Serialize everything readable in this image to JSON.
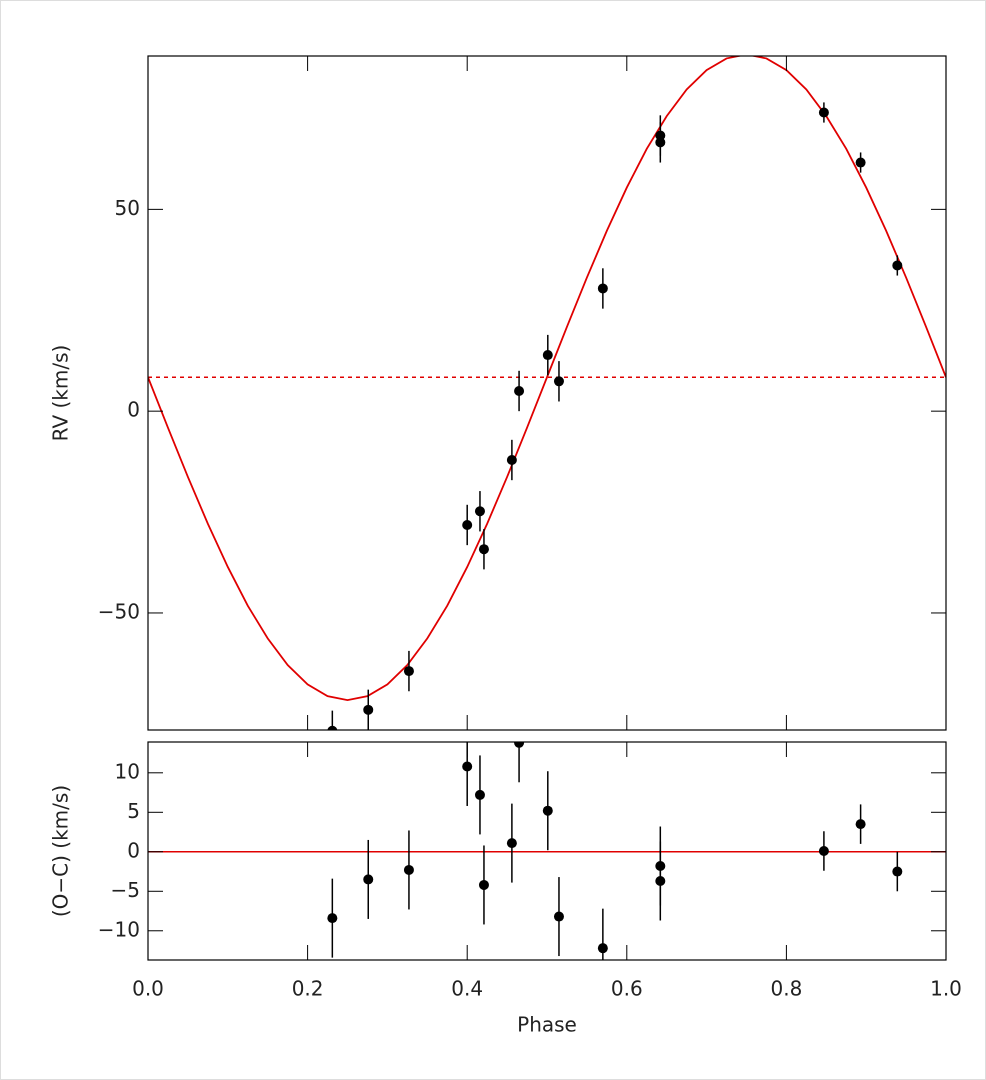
{
  "chart_data": [
    {
      "type": "scatter",
      "ylabel": "RV (km/s)",
      "color": "#000000",
      "x": [
        0.231,
        0.276,
        0.327,
        0.4,
        0.416,
        0.421,
        0.456,
        0.465,
        0.501,
        0.515,
        0.57,
        0.642,
        0.642,
        0.847,
        0.893,
        0.939
      ],
      "values": [
        -79.2,
        -74.0,
        -64.4,
        -28.2,
        -24.8,
        -34.2,
        -12.1,
        5.0,
        13.9,
        7.4,
        30.4,
        68.3,
        66.6,
        74.0,
        61.6,
        36.1
      ],
      "errors": [
        5,
        5,
        5,
        5,
        5,
        5,
        5,
        5,
        5,
        5,
        5,
        5,
        5,
        2.5,
        2.5,
        2.5
      ],
      "model": {
        "color": "#e00000",
        "x": [
          0,
          0.025,
          0.05,
          0.075,
          0.1,
          0.125,
          0.15,
          0.175,
          0.2,
          0.225,
          0.25,
          0.275,
          0.3,
          0.325,
          0.35,
          0.375,
          0.4,
          0.425,
          0.45,
          0.475,
          0.5,
          0.525,
          0.55,
          0.575,
          0.6,
          0.625,
          0.65,
          0.675,
          0.7,
          0.725,
          0.75,
          0.775,
          0.8,
          0.825,
          0.85,
          0.875,
          0.9,
          0.925,
          0.95,
          0.975,
          1
        ],
        "values": [
          8.4,
          -4.1,
          -16.3,
          -27.9,
          -38.6,
          -48.2,
          -56.3,
          -62.9,
          -67.7,
          -70.6,
          -71.6,
          -70.6,
          -67.7,
          -62.9,
          -56.3,
          -48.2,
          -38.6,
          -27.9,
          -16.3,
          -4.1,
          8.4,
          20.9,
          33.1,
          44.7,
          55.4,
          65.0,
          73.1,
          79.7,
          84.5,
          87.4,
          88.4,
          87.4,
          84.5,
          79.7,
          73.1,
          65.0,
          55.4,
          44.7,
          33.1,
          20.9,
          8.4
        ]
      },
      "hline": {
        "value": 8.4,
        "color": "#e00000",
        "style": "dashed"
      },
      "xlim": [
        0,
        1
      ],
      "xticks": [
        0,
        0.2,
        0.4,
        0.6,
        0.8,
        1
      ],
      "ylim": [
        -79,
        88
      ],
      "yticks": [
        {
          "value": -50,
          "label": "−50"
        },
        0,
        50
      ]
    },
    {
      "type": "scatter",
      "ylabel": "(O−C) (km/s)",
      "xlabel": "Phase",
      "color": "#000000",
      "x": [
        0.231,
        0.276,
        0.327,
        0.4,
        0.416,
        0.421,
        0.456,
        0.465,
        0.501,
        0.515,
        0.57,
        0.642,
        0.642,
        0.847,
        0.893,
        0.939
      ],
      "values": [
        -8.4,
        -3.5,
        -2.3,
        10.8,
        7.2,
        -4.2,
        1.1,
        13.8,
        5.2,
        -8.2,
        -12.2,
        -1.8,
        -3.7,
        0.1,
        3.5,
        -2.5
      ],
      "errors": [
        5,
        5,
        5,
        5,
        5,
        5,
        5,
        5,
        5,
        5,
        5,
        5,
        5,
        2.5,
        2.5,
        2.5
      ],
      "hline": {
        "value": 0,
        "color": "#e00000",
        "style": "solid"
      },
      "xlim": [
        0,
        1
      ],
      "xticks": [
        {
          "value": 0,
          "label": "0.0"
        },
        0.2,
        0.4,
        0.6,
        0.8,
        {
          "value": 1,
          "label": "1.0"
        }
      ],
      "ylim": [
        -13.7,
        13.9
      ],
      "yticks": [
        {
          "value": -10,
          "label": "−10"
        },
        {
          "value": -5,
          "label": "−5"
        },
        0,
        5,
        10
      ]
    }
  ]
}
